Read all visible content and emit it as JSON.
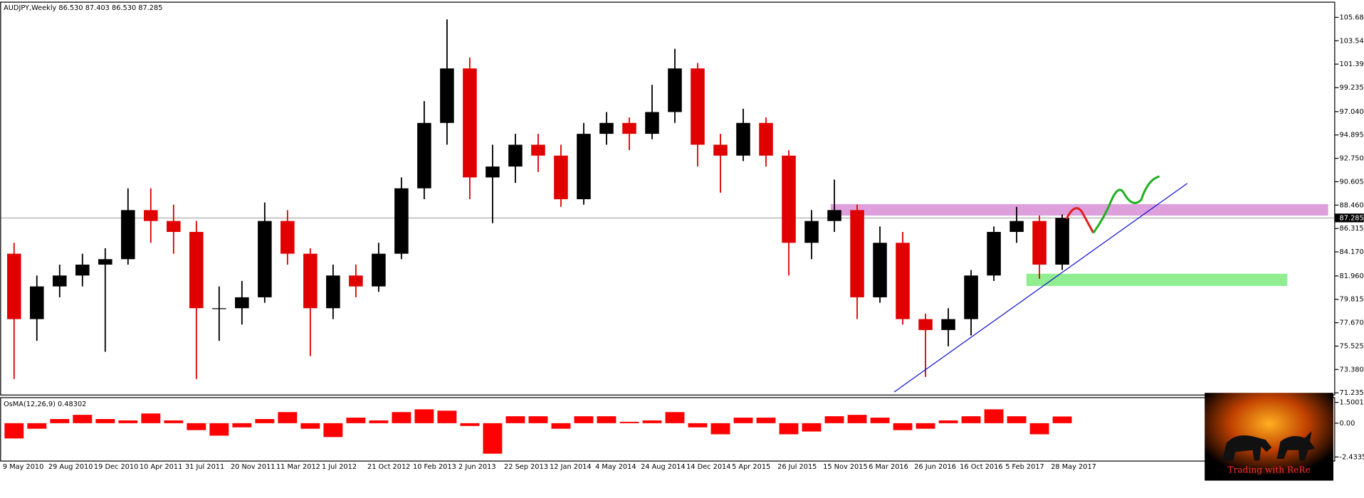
{
  "chart_data": [
    {
      "type": "candlestick",
      "title": "AUDJPY,Weekly  86.530 87.403 86.530 87.285",
      "up_color": "#000000",
      "down_color": "#e00000",
      "series": {
        "open": [
          84,
          78,
          81,
          82,
          83,
          83.5,
          88,
          87,
          86,
          79,
          79,
          80,
          87,
          84,
          79,
          82,
          81,
          84,
          90,
          96,
          101,
          91,
          92,
          94,
          93,
          89,
          95,
          96,
          95,
          97,
          101,
          94,
          93,
          96,
          93,
          85,
          87,
          88,
          80,
          85,
          78,
          77,
          78,
          82,
          86,
          87,
          83
        ],
        "high": [
          85,
          82,
          83,
          84,
          84.5,
          90,
          90,
          88.5,
          87,
          81,
          81.5,
          88.7,
          88,
          84.5,
          83,
          83,
          85,
          91,
          98,
          105.5,
          102,
          94,
          95,
          95,
          94,
          96,
          97,
          96.5,
          99.5,
          102.8,
          101.5,
          95,
          97.3,
          96.5,
          93.5,
          88,
          90.8,
          88.5,
          86.5,
          86,
          78.5,
          79,
          82.5,
          86.5,
          88.3,
          87.5,
          87.6
        ],
        "low": [
          72.5,
          76,
          80,
          81,
          75,
          83,
          85,
          84,
          72.5,
          76,
          77.5,
          79.5,
          83,
          74.6,
          78,
          80,
          80.5,
          83.5,
          89,
          94,
          89,
          86.8,
          90.5,
          91.5,
          88.3,
          88.5,
          94,
          93.5,
          94.5,
          96,
          92,
          89.6,
          92.5,
          92,
          82,
          83.5,
          86,
          78,
          79.5,
          77.5,
          72.7,
          75.5,
          76.5,
          81.5,
          85,
          81.7,
          82.5
        ],
        "close": [
          78,
          81,
          82,
          83,
          83.5,
          88,
          87,
          86,
          79,
          79,
          80,
          87,
          84,
          79,
          82,
          81,
          84,
          90,
          96,
          101,
          91,
          92,
          94,
          93,
          89,
          95,
          96,
          95,
          97,
          101,
          94,
          93,
          96,
          93,
          85,
          87,
          88,
          80,
          85,
          78,
          77,
          78,
          82,
          86,
          87,
          83,
          87.285
        ]
      },
      "x_labels": [
        "9 May 2010",
        "29 Aug 2010",
        "19 Dec 2010",
        "10 Apr 2011",
        "31 Jul 2011",
        "20 Nov 2011",
        "11 Mar 2012",
        "1 Jul 2012",
        "21 Oct 2012",
        "10 Feb 2013",
        "2 Jun 2013",
        "22 Sep 2013",
        "12 Jan 2014",
        "4 May 2014",
        "24 Aug 2014",
        "14 Dec 2014",
        "5 Apr 2015",
        "26 Jul 2015",
        "15 Nov 2015",
        "6 Mar 2016",
        "26 Jun 2016",
        "16 Oct 2016",
        "5 Feb 2017",
        "28 May 2017"
      ],
      "ylim": [
        70.996,
        107.04
      ],
      "yticks": [
        105.685,
        {
          "value": 103.54,
          "label": "103.540"
        },
        101.395,
        99.235,
        {
          "value": 97.04,
          "label": "97.040"
        },
        94.895,
        {
          "value": 92.75,
          "label": "92.750"
        },
        90.605,
        {
          "value": 88.46,
          "label": "88.460"
        },
        86.315,
        {
          "value": 84.17,
          "label": "84.170"
        },
        {
          "value": 81.96,
          "label": "81.960"
        },
        79.815,
        {
          "value": 77.67,
          "label": "77.670"
        },
        75.525,
        {
          "value": 73.38,
          "label": "73.380"
        },
        71.235
      ],
      "current_price": 87.285,
      "zones": [
        {
          "low": 87.5,
          "high": 88.55,
          "color": "#dda0dd"
        },
        {
          "low": 81.04,
          "high": 82.16,
          "color": "#90ee90"
        }
      ],
      "logo_text": "Trading with ReRe"
    },
    {
      "type": "bar",
      "title": "OsMA(12,26,9) 0.48302",
      "color": "#ff0000",
      "values": [
        -1.1,
        -0.4,
        0.3,
        0.6,
        0.3,
        0.2,
        0.7,
        0.2,
        -0.5,
        -0.9,
        -0.3,
        0.3,
        0.8,
        -0.4,
        -1.0,
        0.4,
        0.2,
        0.8,
        1.0,
        0.9,
        -0.2,
        -2.2,
        0.5,
        0.5,
        -0.4,
        0.5,
        0.5,
        0.1,
        0.2,
        0.8,
        -0.3,
        -0.8,
        0.4,
        0.4,
        -0.8,
        -0.6,
        0.5,
        0.6,
        0.4,
        -0.5,
        -0.4,
        0.2,
        0.5,
        1.0,
        0.5,
        -0.8,
        0.48302
      ],
      "ylim": [
        -2.7,
        1.75
      ],
      "yticks": [
        1.50014,
        {
          "value": 0,
          "label": "0.00"
        },
        -2.43351
      ]
    }
  ]
}
